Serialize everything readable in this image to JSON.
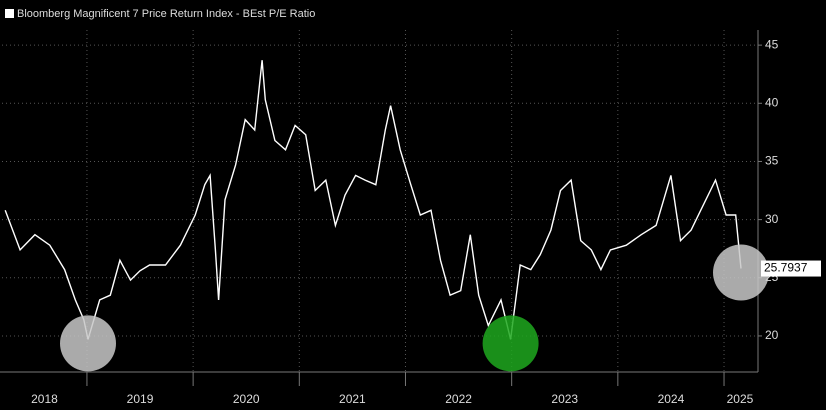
{
  "chart_data": {
    "type": "line",
    "series": [
      {
        "name": "Bloomberg Magnificent 7 Price Return Index - BEst P/E Ratio",
        "color": "#ffffff",
        "x": [
          2018.23,
          2018.37,
          2018.51,
          2018.65,
          2018.79,
          2018.89,
          2018.97,
          2019.01,
          2019.12,
          2019.22,
          2019.31,
          2019.41,
          2019.5,
          2019.59,
          2019.74,
          2019.88,
          2020.02,
          2020.11,
          2020.16,
          2020.21,
          2020.24,
          2020.3,
          2020.4,
          2020.49,
          2020.58,
          2020.65,
          2020.68,
          2020.77,
          2020.87,
          2020.96,
          2021.06,
          2021.15,
          2021.25,
          2021.34,
          2021.43,
          2021.53,
          2021.62,
          2021.72,
          2021.81,
          2021.86,
          2021.95,
          2022.05,
          2022.14,
          2022.24,
          2022.33,
          2022.42,
          2022.52,
          2022.61,
          2022.69,
          2022.78,
          2022.9,
          2022.99,
          2023.08,
          2023.18,
          2023.27,
          2023.37,
          2023.46,
          2023.56,
          2023.65,
          2023.75,
          2023.84,
          2023.93,
          2024.08,
          2024.22,
          2024.36,
          2024.5,
          2024.59,
          2024.69,
          2024.78,
          2024.92,
          2025.02,
          2025.11,
          2025.16
        ],
        "values": [
          30.8,
          27.4,
          28.7,
          27.8,
          25.7,
          23.1,
          21.4,
          19.7,
          23.1,
          23.5,
          26.5,
          24.8,
          25.6,
          26.1,
          26.1,
          27.8,
          30.4,
          33.0,
          33.8,
          27.4,
          23.1,
          31.7,
          34.7,
          38.6,
          37.7,
          43.7,
          40.3,
          36.8,
          36.0,
          38.1,
          37.3,
          32.5,
          33.4,
          29.5,
          32.1,
          33.8,
          33.4,
          33.0,
          37.7,
          39.8,
          36.0,
          33.0,
          30.4,
          30.8,
          26.5,
          23.5,
          23.9,
          28.7,
          23.5,
          20.9,
          23.1,
          19.7,
          26.1,
          25.7,
          27.0,
          29.1,
          32.5,
          33.4,
          28.2,
          27.4,
          25.7,
          27.4,
          27.8,
          28.7,
          29.5,
          33.8,
          28.2,
          29.1,
          30.8,
          33.4,
          30.4,
          30.4,
          25.7937
        ]
      }
    ],
    "xlim": [
      2018.2,
      2025.32
    ],
    "xticks": [
      {
        "value": 2018.6,
        "label": "2018"
      },
      {
        "value": 2019.5,
        "label": "2019"
      },
      {
        "value": 2020.5,
        "label": "2020"
      },
      {
        "value": 2021.5,
        "label": "2021"
      },
      {
        "value": 2022.5,
        "label": "2022"
      },
      {
        "value": 2023.5,
        "label": "2023"
      },
      {
        "value": 2024.5,
        "label": "2024"
      },
      {
        "value": 2025.15,
        "label": "2025"
      }
    ],
    "xgrid": [
      2019,
      2020,
      2021,
      2022,
      2023,
      2024,
      2025
    ],
    "ylim": [
      16.9,
      46.3
    ],
    "yticks": [
      20,
      25,
      30,
      35,
      40,
      45
    ],
    "grid": true,
    "y_axis_side": "right"
  }
}
